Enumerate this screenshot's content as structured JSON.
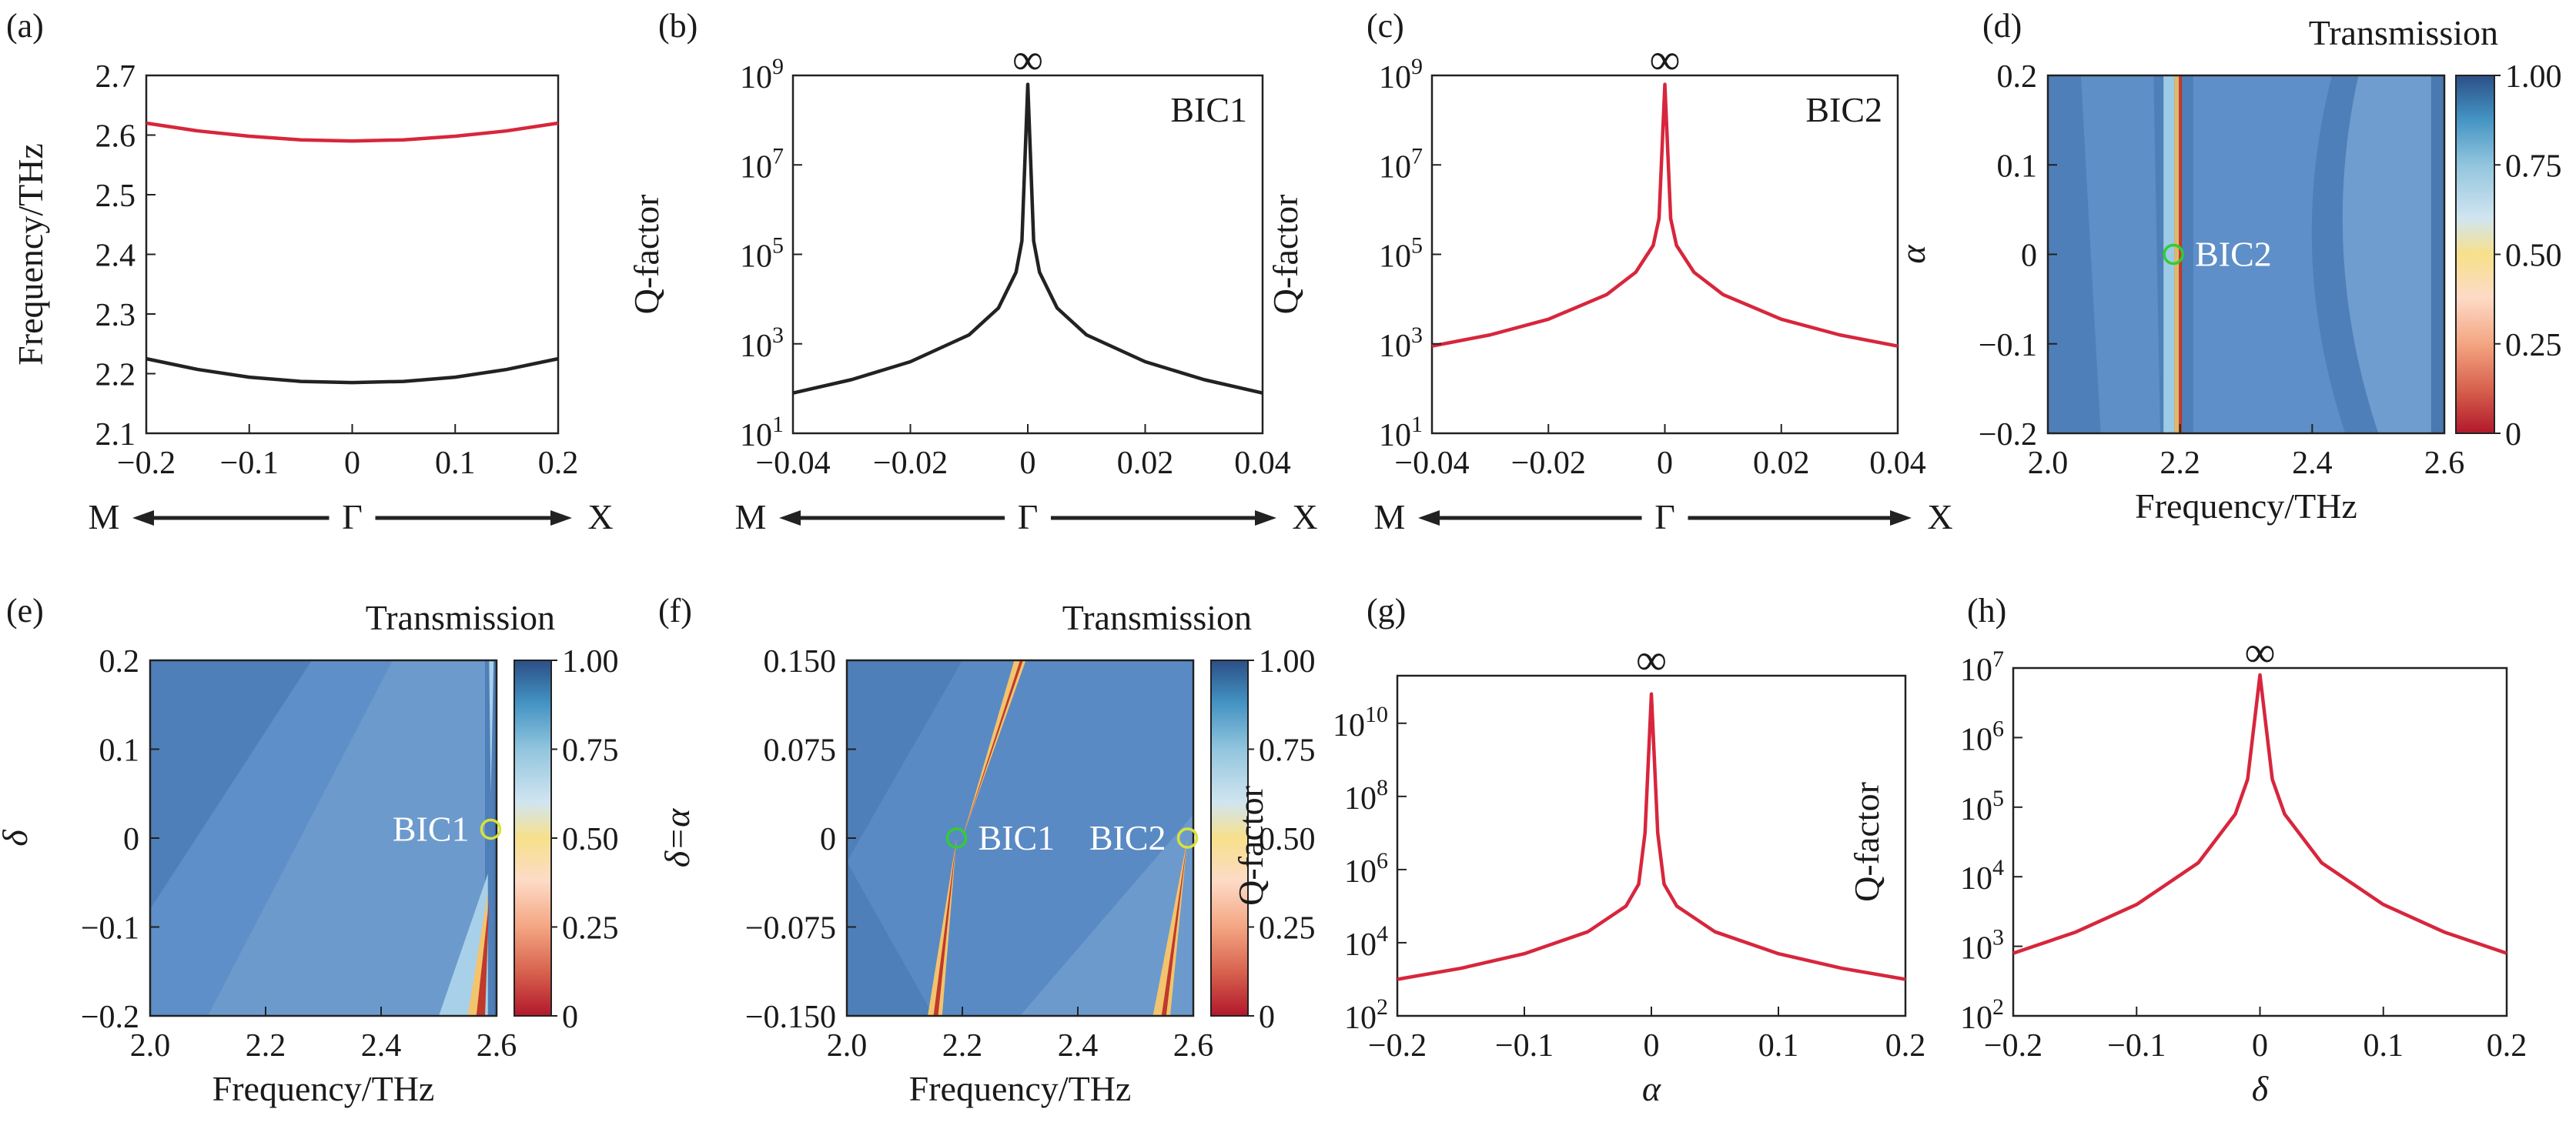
{
  "chart_data": [
    {
      "panel": "(a)",
      "type": "line",
      "xlabel_left": "M",
      "xlabel_center": "Γ",
      "xlabel_right": "X",
      "ylabel": "Frequency/THz",
      "xlim": [
        -0.2,
        0.2
      ],
      "ylim": [
        2.1,
        2.7
      ],
      "xticks": [
        "−0.2",
        "−0.1",
        "0",
        "0.1",
        "0.2"
      ],
      "yticks": [
        "2.1",
        "2.2",
        "2.3",
        "2.4",
        "2.5",
        "2.6",
        "2.7"
      ],
      "x": [
        -0.2,
        -0.15,
        -0.1,
        -0.05,
        0,
        0.05,
        0.1,
        0.15,
        0.2
      ],
      "series": [
        {
          "color": "#d7263d",
          "values": [
            2.62,
            2.607,
            2.598,
            2.592,
            2.59,
            2.592,
            2.598,
            2.607,
            2.62
          ]
        },
        {
          "color": "#222222",
          "values": [
            2.225,
            2.207,
            2.194,
            2.187,
            2.185,
            2.187,
            2.194,
            2.207,
            2.225
          ]
        }
      ]
    },
    {
      "panel": "(b)",
      "type": "line",
      "yscale": "log",
      "annotation": "BIC1",
      "peak_label": "∞",
      "xlabel_left": "M",
      "xlabel_center": "Γ",
      "xlabel_right": "X",
      "ylabel": "Q-factor",
      "xlim": [
        -0.04,
        0.04
      ],
      "ylim_exp": [
        1,
        9
      ],
      "xticks": [
        "−0.04",
        "−0.02",
        "0",
        "0.02",
        "0.04"
      ],
      "yticks": [
        "10^1",
        "10^3",
        "10^5",
        "10^7",
        "10^9"
      ],
      "x": [
        -0.04,
        -0.03,
        -0.02,
        -0.01,
        -0.005,
        -0.002,
        -0.001,
        0,
        0.001,
        0.002,
        0.005,
        0.01,
        0.02,
        0.03,
        0.04
      ],
      "log10_y": [
        1.9,
        2.2,
        2.6,
        3.2,
        3.8,
        4.6,
        5.3,
        8.8,
        5.3,
        4.6,
        3.8,
        3.2,
        2.6,
        2.2,
        1.9
      ],
      "color": "#222222"
    },
    {
      "panel": "(c)",
      "type": "line",
      "yscale": "log",
      "annotation": "BIC2",
      "peak_label": "∞",
      "xlabel_left": "M",
      "xlabel_center": "Γ",
      "xlabel_right": "X",
      "ylabel": "Q-factor",
      "xlim": [
        -0.04,
        0.04
      ],
      "ylim_exp": [
        1,
        9
      ],
      "xticks": [
        "−0.04",
        "−0.02",
        "0",
        "0.02",
        "0.04"
      ],
      "yticks": [
        "10^1",
        "10^3",
        "10^5",
        "10^7",
        "10^9"
      ],
      "x": [
        -0.04,
        -0.03,
        -0.02,
        -0.01,
        -0.005,
        -0.002,
        -0.001,
        0,
        0.001,
        0.002,
        0.005,
        0.01,
        0.02,
        0.03,
        0.04
      ],
      "log10_y": [
        2.95,
        3.2,
        3.55,
        4.1,
        4.6,
        5.2,
        5.8,
        8.8,
        5.8,
        5.2,
        4.6,
        4.1,
        3.55,
        3.2,
        2.95
      ],
      "color": "#d7263d"
    },
    {
      "panel": "(d)",
      "type": "heatmap",
      "colorbar_title": "Transmission",
      "colorbar_ticks": [
        "0",
        "0.25",
        "0.50",
        "0.75",
        "1.00"
      ],
      "xlabel": "Frequency/THz",
      "ylabel": "α",
      "xlim": [
        2.0,
        2.6
      ],
      "ylim": [
        -0.2,
        0.2
      ],
      "xticks": [
        "2.0",
        "2.2",
        "2.4",
        "2.6"
      ],
      "yticks": [
        "−0.2",
        "−0.1",
        "0",
        "0.1",
        "0.2"
      ],
      "markers": [
        {
          "label": "BIC2",
          "x": 2.19,
          "y": 0,
          "color": "#33cc33"
        }
      ]
    },
    {
      "panel": "(e)",
      "type": "heatmap",
      "colorbar_title": "Transmission",
      "colorbar_ticks": [
        "0",
        "0.25",
        "0.50",
        "0.75",
        "1.00"
      ],
      "xlabel": "Frequency/THz",
      "ylabel": "δ",
      "xlim": [
        2.0,
        2.6
      ],
      "ylim": [
        -0.2,
        0.2
      ],
      "xticks": [
        "2.0",
        "2.2",
        "2.4",
        "2.6"
      ],
      "yticks": [
        "−0.2",
        "−0.1",
        "0",
        "0.1",
        "0.2"
      ],
      "markers": [
        {
          "label": "BIC1",
          "x": 2.59,
          "y": 0.01,
          "color": "#d8e23a"
        }
      ]
    },
    {
      "panel": "(f)",
      "type": "heatmap",
      "colorbar_title": "Transmission",
      "colorbar_ticks": [
        "0",
        "0.25",
        "0.50",
        "0.75",
        "1.00"
      ],
      "xlabel": "Frequency/THz",
      "ylabel": "δ=α",
      "xlim": [
        2.0,
        2.6
      ],
      "ylim": [
        -0.15,
        0.15
      ],
      "xticks": [
        "2.0",
        "2.2",
        "2.4",
        "2.6"
      ],
      "yticks": [
        "−0.150",
        "−0.075",
        "0",
        "0.075",
        "0.150"
      ],
      "markers": [
        {
          "label": "BIC1",
          "x": 2.19,
          "y": 0,
          "color": "#33cc33"
        },
        {
          "label": "BIC2",
          "x": 2.59,
          "y": 0,
          "color": "#d8e23a"
        }
      ]
    },
    {
      "panel": "(g)",
      "type": "line",
      "yscale": "log",
      "peak_label": "∞",
      "xlabel": "α",
      "ylabel": "Q-factor",
      "xlim": [
        -0.2,
        0.2
      ],
      "ylim_exp": [
        2,
        11.3
      ],
      "xticks": [
        "−0.2",
        "−0.1",
        "0",
        "0.1",
        "0.2"
      ],
      "yticks": [
        "10^2",
        "10^4",
        "10^6",
        "10^8",
        "10^10"
      ],
      "x": [
        -0.2,
        -0.15,
        -0.1,
        -0.05,
        -0.02,
        -0.01,
        -0.005,
        0,
        0.005,
        0.01,
        0.02,
        0.05,
        0.1,
        0.15,
        0.2
      ],
      "log10_y": [
        3.0,
        3.3,
        3.7,
        4.3,
        5.0,
        5.6,
        7.0,
        10.8,
        7.0,
        5.6,
        5.0,
        4.3,
        3.7,
        3.3,
        3.0
      ],
      "color": "#d7263d"
    },
    {
      "panel": "(h)",
      "type": "line",
      "yscale": "log",
      "peak_label": "∞",
      "xlabel": "δ",
      "ylabel": "Q-factor",
      "xlim": [
        -0.2,
        0.2
      ],
      "ylim_exp": [
        2,
        7
      ],
      "xticks": [
        "−0.2",
        "−0.1",
        "0",
        "0.1",
        "0.2"
      ],
      "yticks": [
        "10^2",
        "10^3",
        "10^4",
        "10^5",
        "10^6",
        "10^7"
      ],
      "x": [
        -0.2,
        -0.15,
        -0.1,
        -0.05,
        -0.02,
        -0.01,
        0,
        0.01,
        0.02,
        0.05,
        0.1,
        0.15,
        0.2
      ],
      "log10_y": [
        2.9,
        3.2,
        3.6,
        4.2,
        4.9,
        5.4,
        6.9,
        5.4,
        4.9,
        4.2,
        3.6,
        3.2,
        2.9
      ],
      "color": "#d7263d"
    }
  ]
}
